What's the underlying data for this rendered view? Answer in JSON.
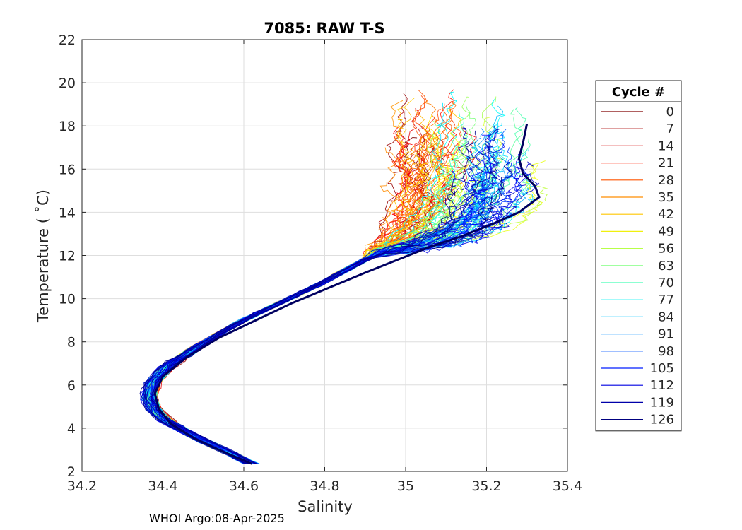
{
  "chart_data": {
    "type": "line",
    "title": "7085: RAW T-S",
    "xlabel": "Salinity",
    "ylabel": "Temperature ( ˚C)",
    "xlim": [
      34.2,
      35.4
    ],
    "ylim": [
      2,
      22
    ],
    "xticks": [
      34.2,
      34.4,
      34.6,
      34.8,
      35,
      35.2,
      35.4
    ],
    "xtick_labels": [
      "34.2",
      "34.4",
      "34.6",
      "34.8",
      "35",
      "35.2",
      "35.4"
    ],
    "yticks": [
      2,
      4,
      6,
      8,
      10,
      12,
      14,
      16,
      18,
      20,
      22
    ],
    "ytick_labels": [
      "2",
      "4",
      "6",
      "8",
      "10",
      "12",
      "14",
      "16",
      "18",
      "20",
      "22"
    ],
    "grid": true,
    "legend": {
      "title": "Cycle #",
      "position": "right-outside",
      "entries": [
        {
          "label": "0",
          "color": "#800000"
        },
        {
          "label": "7",
          "color": "#aa0000"
        },
        {
          "label": "14",
          "color": "#d40000"
        },
        {
          "label": "21",
          "color": "#ff1c00"
        },
        {
          "label": "28",
          "color": "#ff5500"
        },
        {
          "label": "35",
          "color": "#ff8e00"
        },
        {
          "label": "42",
          "color": "#ffc600"
        },
        {
          "label": "49",
          "color": "#f0f00e"
        },
        {
          "label": "56",
          "color": "#b8ff47"
        },
        {
          "label": "63",
          "color": "#80ff80"
        },
        {
          "label": "70",
          "color": "#47ffb8"
        },
        {
          "label": "77",
          "color": "#0ef0f0"
        },
        {
          "label": "84",
          "color": "#00c6ff"
        },
        {
          "label": "91",
          "color": "#008eff"
        },
        {
          "label": "98",
          "color": "#0055ff"
        },
        {
          "label": "105",
          "color": "#001cff"
        },
        {
          "label": "112",
          "color": "#0000e2"
        },
        {
          "label": "119",
          "color": "#0000aa"
        },
        {
          "label": "126",
          "color": "#000080"
        }
      ]
    },
    "reference_profile": {
      "S": [
        34.62,
        34.56,
        34.49,
        34.43,
        34.39,
        34.37,
        34.38,
        34.42,
        34.48,
        34.55,
        34.62,
        34.7,
        34.78,
        34.85,
        34.91,
        34.97,
        35.03,
        35.09,
        35.15,
        35.21,
        35.26,
        35.3
      ],
      "T": [
        2.35,
        2.9,
        3.5,
        4.1,
        4.7,
        5.4,
        6.1,
        6.9,
        7.7,
        8.5,
        9.2,
        9.9,
        10.6,
        11.3,
        11.9,
        12.4,
        12.8,
        13.2,
        13.6,
        14.0,
        14.3,
        14.6
      ]
    },
    "upper_ranges": {
      "early_cycles": {
        "S": [
          34.88,
          35.15
        ],
        "T": [
          12.0,
          19.5
        ]
      },
      "mid_cycles": {
        "S": [
          35.0,
          35.38
        ],
        "T": [
          12.5,
          19.8
        ]
      },
      "late_cycles": {
        "S": [
          35.1,
          35.3
        ],
        "T": [
          12.8,
          18.0
        ]
      }
    },
    "last_cycle_path": {
      "S": [
        34.62,
        34.55,
        34.48,
        34.42,
        34.39,
        34.38,
        34.4,
        34.46,
        34.54,
        34.63,
        34.72,
        34.81,
        34.9,
        34.98,
        35.06,
        35.14,
        35.22,
        35.28,
        35.33,
        35.32,
        35.29,
        35.28,
        35.29,
        35.3
      ],
      "T": [
        2.35,
        2.9,
        3.5,
        4.2,
        4.9,
        5.6,
        6.4,
        7.3,
        8.2,
        9.0,
        9.8,
        10.5,
        11.2,
        11.8,
        12.4,
        12.9,
        13.5,
        14.0,
        14.7,
        15.2,
        15.8,
        16.5,
        17.2,
        18.1
      ]
    }
  },
  "footer": "WHOI Argo:08-Apr-2025"
}
